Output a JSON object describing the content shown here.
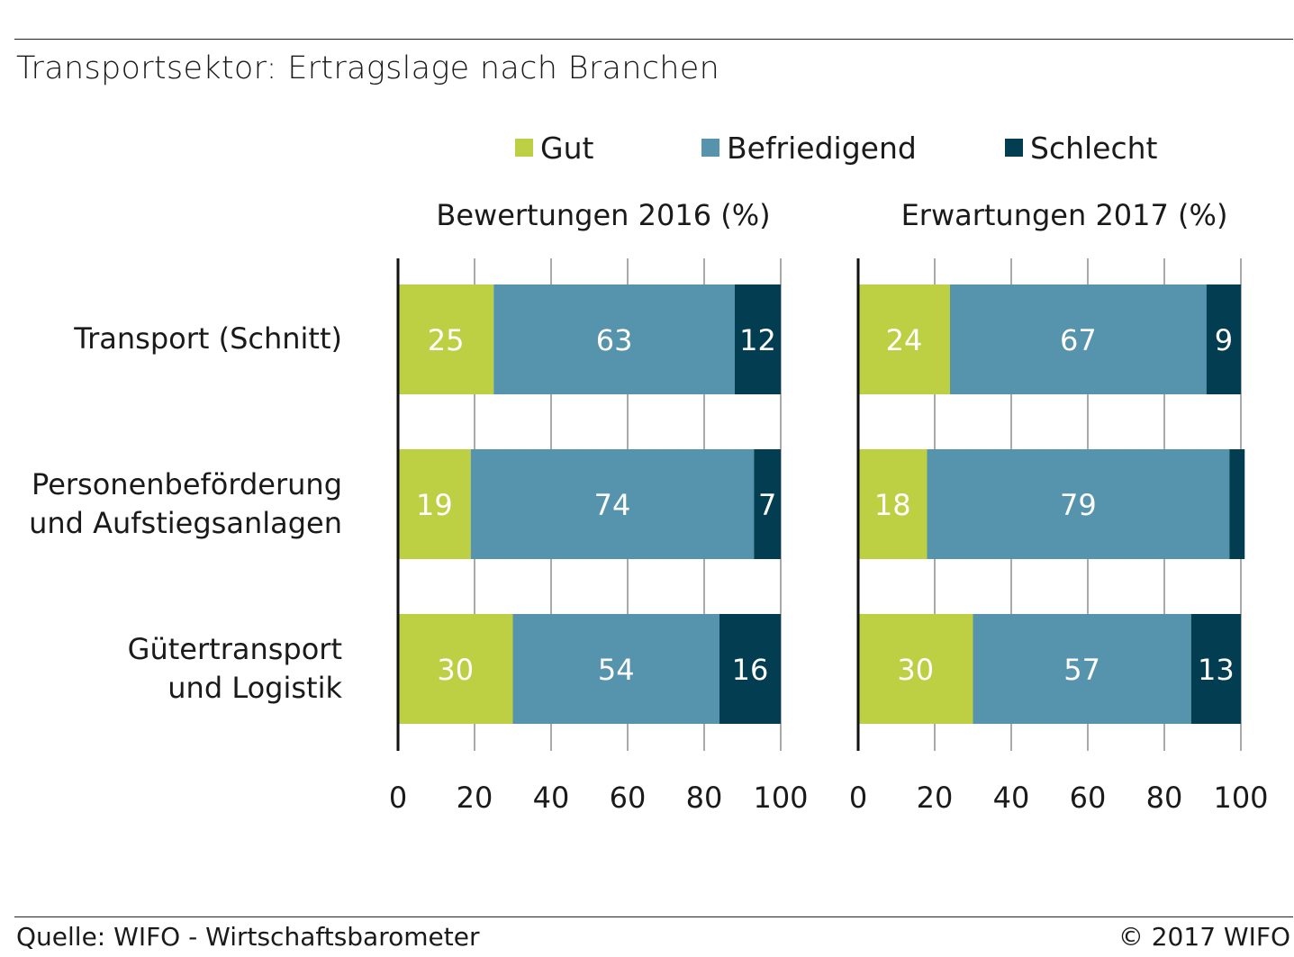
{
  "title": "Transportsektor: Ertragslage nach Branchen",
  "footer": {
    "source": "Quelle: WIFO - Wirtschaftsbarometer",
    "copyright": "© 2017 WIFO"
  },
  "legend": [
    {
      "label": "Gut",
      "color": "#bdd043"
    },
    {
      "label": "Befriedigend",
      "color": "#5693ad"
    },
    {
      "label": "Schlecht",
      "color": "#033d52"
    }
  ],
  "categories": [
    "Transport (Schnitt)",
    "Personenbeförderung und Aufstiegsanlagen",
    "Gütertransport und Logistik"
  ],
  "category_lines": [
    [
      "Transport (Schnitt)"
    ],
    [
      "Personenbeförderung",
      "und Aufstiegsanlagen"
    ],
    [
      "Gütertransport",
      "und Logistik"
    ]
  ],
  "chart_data": [
    {
      "type": "bar",
      "orientation": "horizontal",
      "stacked": true,
      "title": "Bewertungen 2016 (%)",
      "categories": [
        "Transport (Schnitt)",
        "Personenbeförderung und Aufstiegsanlagen",
        "Gütertransport und Logistik"
      ],
      "series": [
        {
          "name": "Gut",
          "color": "#bdd043",
          "values": [
            25,
            19,
            30
          ]
        },
        {
          "name": "Befriedigend",
          "color": "#5693ad",
          "values": [
            63,
            74,
            54
          ]
        },
        {
          "name": "Schlecht",
          "color": "#033d52",
          "values": [
            12,
            7,
            16
          ]
        }
      ],
      "xlim": [
        0,
        100
      ],
      "xticks": [
        0,
        20,
        40,
        60,
        80,
        100
      ],
      "grid": true
    },
    {
      "type": "bar",
      "orientation": "horizontal",
      "stacked": true,
      "title": "Erwartungen 2017 (%)",
      "categories": [
        "Transport (Schnitt)",
        "Personenbeförderung und Aufstiegsanlagen",
        "Gütertransport und Logistik"
      ],
      "series": [
        {
          "name": "Gut",
          "color": "#bdd043",
          "values": [
            24,
            18,
            30
          ]
        },
        {
          "name": "Befriedigend",
          "color": "#5693ad",
          "values": [
            67,
            79,
            57
          ]
        },
        {
          "name": "Schlecht",
          "color": "#033d52",
          "values": [
            9,
            4,
            13
          ]
        }
      ],
      "value_labels": [
        [
          "24",
          "67",
          "9"
        ],
        [
          "18",
          "79",
          ""
        ],
        [
          "30",
          "57",
          "13"
        ]
      ],
      "xlim": [
        0,
        100
      ],
      "xticks": [
        0,
        20,
        40,
        60,
        80,
        100
      ],
      "grid": true
    }
  ]
}
